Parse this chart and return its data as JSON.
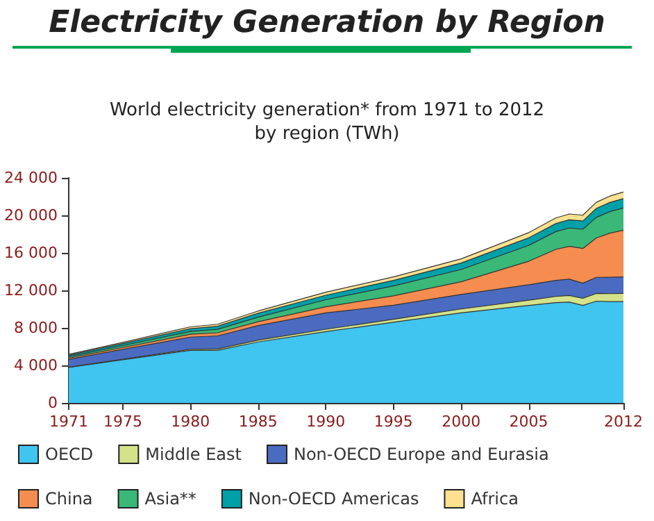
{
  "chart_data": {
    "type": "area",
    "title": "Electricity Generation by Region",
    "subtitle": "World electricity generation* from 1971 to 2012\nby region (TWh)",
    "stacked": true,
    "legend": "bottom",
    "grid": false,
    "x": [
      1971,
      1975,
      1980,
      1982,
      1985,
      1990,
      1995,
      2000,
      2005,
      2007,
      2008,
      2009,
      2010,
      2011,
      2012
    ],
    "xlim": [
      1971,
      2012
    ],
    "xticks": [
      1971,
      1975,
      1980,
      1985,
      1990,
      1995,
      2000,
      2005,
      2012
    ],
    "ylim": [
      0,
      24000
    ],
    "yticks": [
      0,
      {
        "value": 4000,
        "label": "4 000"
      },
      {
        "value": 8000,
        "label": "8 000"
      },
      {
        "value": 12000,
        "label": "12 000"
      },
      {
        "value": 16000,
        "label": "16 000"
      },
      {
        "value": 20000,
        "label": "20 000"
      },
      {
        "value": 24000,
        "label": "24 000"
      }
    ],
    "series": [
      {
        "name": "OECD",
        "color": "#40c4f0",
        "values": [
          3780,
          4600,
          5600,
          5600,
          6500,
          7600,
          8600,
          9600,
          10400,
          10700,
          10750,
          10400,
          10850,
          10800,
          10800
        ]
      },
      {
        "name": "Middle East",
        "color": "#d4e38a",
        "values": [
          30,
          60,
          120,
          150,
          200,
          250,
          320,
          420,
          550,
          650,
          700,
          750,
          820,
          850,
          880
        ]
      },
      {
        "name": "Non-OECD Europe and Eurasia",
        "color": "#4a6bbf",
        "values": [
          830,
          1050,
          1300,
          1400,
          1550,
          1750,
          1500,
          1550,
          1650,
          1720,
          1750,
          1620,
          1720,
          1750,
          1750
        ]
      },
      {
        "name": "China",
        "color": "#f58c50",
        "values": [
          140,
          200,
          300,
          330,
          410,
          650,
          1000,
          1350,
          2500,
          3300,
          3500,
          3700,
          4200,
          4700,
          4990
        ]
      },
      {
        "name": "Asia**",
        "color": "#3ab878",
        "values": [
          150,
          200,
          300,
          360,
          480,
          750,
          1050,
          1300,
          1700,
          1900,
          1950,
          2050,
          2200,
          2300,
          2370
        ]
      },
      {
        "name": "Non-OECD Americas",
        "color": "#00a0a8",
        "values": [
          150,
          220,
          300,
          340,
          420,
          480,
          600,
          700,
          800,
          850,
          880,
          880,
          950,
          980,
          1000
        ]
      },
      {
        "name": "Africa",
        "color": "#fde190",
        "values": [
          90,
          120,
          190,
          210,
          240,
          320,
          370,
          440,
          560,
          600,
          620,
          620,
          660,
          680,
          700
        ]
      }
    ]
  }
}
